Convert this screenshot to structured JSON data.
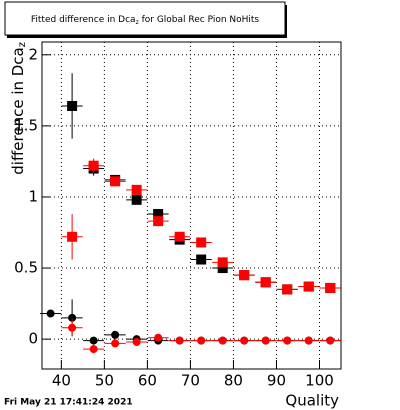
{
  "chart_data": {
    "type": "errorbar",
    "title": "Fitted difference in Dca",
    "title_sub": "z",
    "title_tail": " for Global Rec Pion NoHits",
    "y_label": "difference in Dca",
    "y_label_sub": "z",
    "x_label": "Quality",
    "timestamp": "Fri May 21 17:41:24 2021",
    "xlim": [
      35.5,
      105
    ],
    "ylim": [
      -0.21,
      2.09
    ],
    "xticks": [
      40,
      50,
      60,
      70,
      80,
      90,
      100
    ],
    "yticks": [
      0,
      0.5,
      1,
      1.5,
      2
    ],
    "grid": true,
    "series": [
      {
        "color": "#000000",
        "marker": "square",
        "x": [
          42.5,
          47.5,
          52.5,
          57.5,
          62.5,
          67.5,
          72.5,
          77.5,
          82.5,
          87.5,
          92.5,
          97.5,
          102.5
        ],
        "values": [
          1.64,
          1.2,
          1.12,
          0.98,
          0.88,
          0.7,
          0.56,
          0.5,
          0.45,
          0.4,
          0.35,
          0.37,
          0.36
        ],
        "errors": [
          0.23,
          0.05,
          0.03,
          0.03,
          0.02,
          0.02,
          0.02,
          0.02,
          0.02,
          0.02,
          0.02,
          0.02,
          0.02
        ]
      },
      {
        "color": "#000000",
        "marker": "circle",
        "x": [
          37.5,
          42.5,
          47.5,
          52.5,
          57.5,
          62.5,
          67.5,
          72.5,
          77.5,
          82.5,
          87.5,
          92.5,
          97.5,
          102.5
        ],
        "values": [
          0.18,
          0.15,
          -0.01,
          0.03,
          0.0,
          -0.01,
          -0.01,
          -0.01,
          -0.01,
          -0.01,
          -0.01,
          -0.01,
          -0.01,
          -0.01
        ],
        "errors": [
          0.02,
          0.13,
          0.02,
          0.02,
          0.02,
          0.02,
          0.01,
          0.01,
          0.01,
          0.01,
          0.01,
          0.01,
          0.01,
          0.01
        ]
      },
      {
        "color": "#ff0000",
        "marker": "square",
        "x": [
          42.5,
          47.5,
          52.5,
          57.5,
          62.5,
          67.5,
          72.5,
          77.5,
          82.5,
          87.5,
          92.5,
          97.5,
          102.5
        ],
        "values": [
          0.72,
          1.22,
          1.11,
          1.05,
          0.83,
          0.72,
          0.68,
          0.54,
          0.45,
          0.4,
          0.35,
          0.37,
          0.36
        ],
        "errors": [
          0.16,
          0.05,
          0.03,
          0.03,
          0.02,
          0.02,
          0.02,
          0.02,
          0.02,
          0.02,
          0.02,
          0.02,
          0.02
        ]
      },
      {
        "color": "#ff0000",
        "marker": "circle",
        "x": [
          42.5,
          47.5,
          52.5,
          57.5,
          62.5,
          67.5,
          72.5,
          77.5,
          82.5,
          87.5,
          92.5,
          97.5,
          102.5
        ],
        "values": [
          0.08,
          -0.07,
          -0.03,
          -0.02,
          0.01,
          -0.01,
          -0.01,
          -0.01,
          -0.01,
          -0.01,
          -0.01,
          -0.01,
          -0.01
        ],
        "errors": [
          0.06,
          0.03,
          0.02,
          0.02,
          0.02,
          0.01,
          0.01,
          0.01,
          0.01,
          0.01,
          0.01,
          0.01,
          0.01
        ]
      }
    ]
  }
}
